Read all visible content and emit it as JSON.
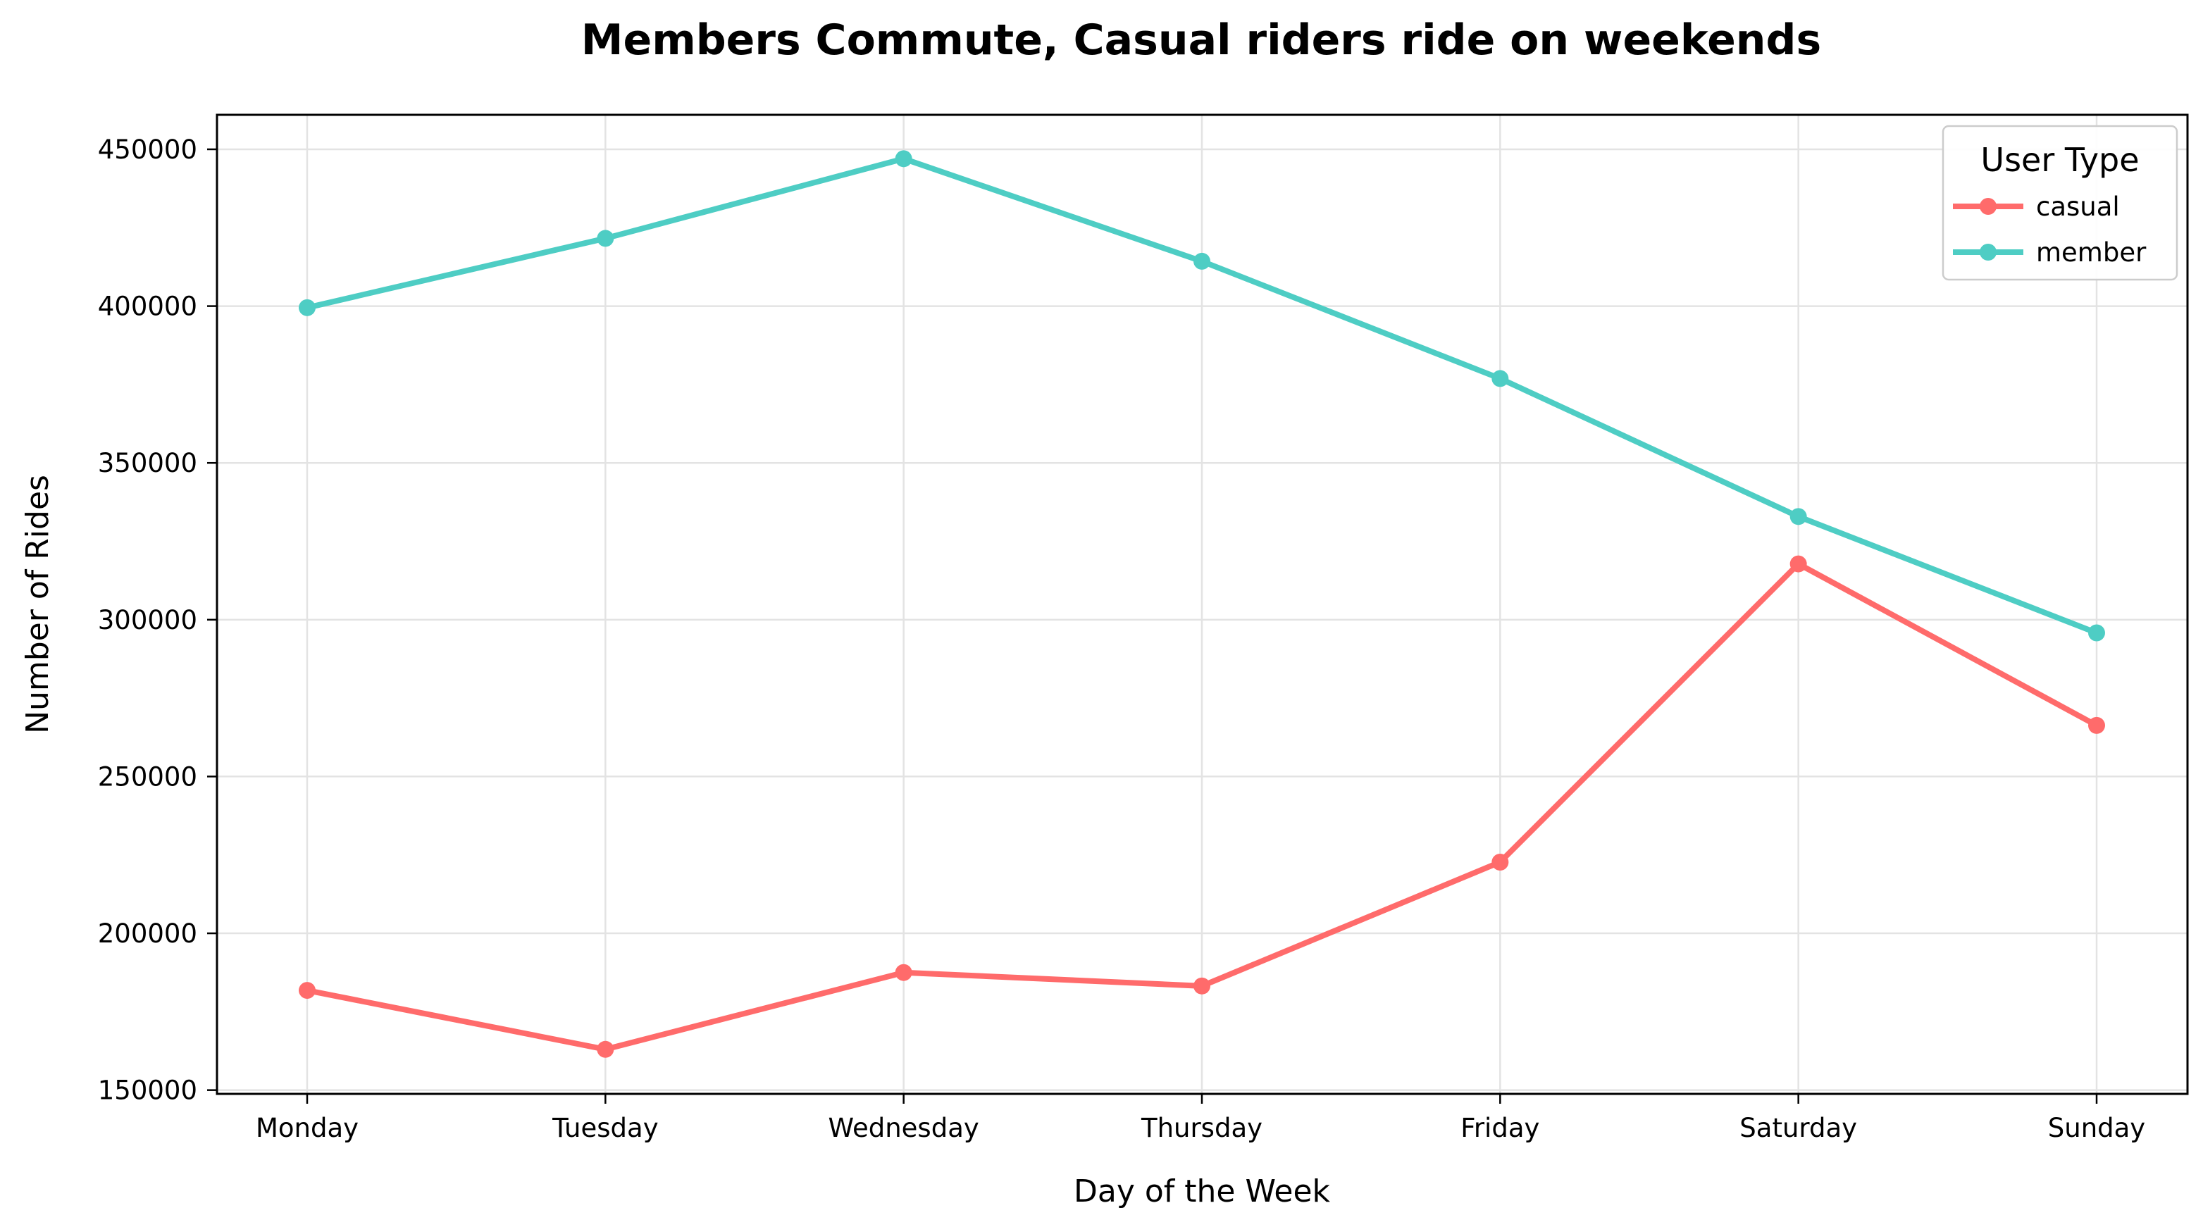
{
  "chart_data": {
    "type": "line",
    "title": "Members Commute, Casual riders ride on weekends",
    "xlabel": "Day of the Week",
    "ylabel": "Number of Rides",
    "categories": [
      "Monday",
      "Tuesday",
      "Wednesday",
      "Thursday",
      "Friday",
      "Saturday",
      "Sunday"
    ],
    "ylim": [
      148800,
      461000
    ],
    "yticks": [
      150000,
      200000,
      250000,
      300000,
      350000,
      400000,
      450000
    ],
    "grid": true,
    "legend": {
      "title": "User Type",
      "placement": "top-right"
    },
    "series": [
      {
        "name": "casual",
        "color": "#FF6B6B",
        "values": [
          181800,
          163000,
          187500,
          183200,
          222700,
          317800,
          266300
        ]
      },
      {
        "name": "member",
        "color": "#4ECDC4",
        "values": [
          399500,
          421600,
          447000,
          414300,
          376900,
          332900,
          295800
        ]
      }
    ]
  }
}
